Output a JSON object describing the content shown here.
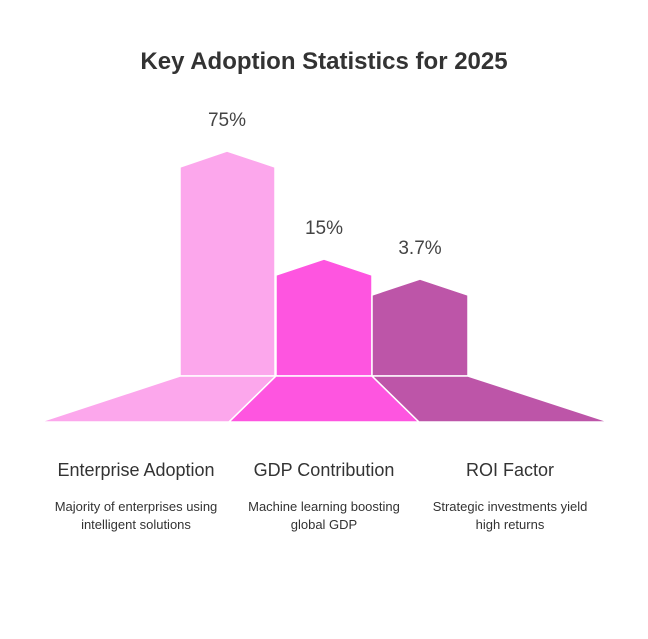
{
  "title": "Key Adoption Statistics for 2025",
  "chart_data": {
    "type": "bar",
    "categories": [
      "Enterprise Adoption",
      "GDP Contribution",
      "ROI Factor"
    ],
    "values": [
      75,
      15,
      3.7
    ],
    "value_labels": [
      "75%",
      "15%",
      "3.7%"
    ],
    "title": "Key Adoption Statistics for 2025",
    "colors": [
      "#fca7ec",
      "#fe55e0",
      "#bd55a8"
    ]
  },
  "items": [
    {
      "title": "Enterprise Adoption",
      "description": "Majority of enterprises using intelligent solutions"
    },
    {
      "title": "GDP Contribution",
      "description": "Machine learning boosting global GDP"
    },
    {
      "title": "ROI Factor",
      "description": "Strategic investments yield high returns"
    }
  ]
}
